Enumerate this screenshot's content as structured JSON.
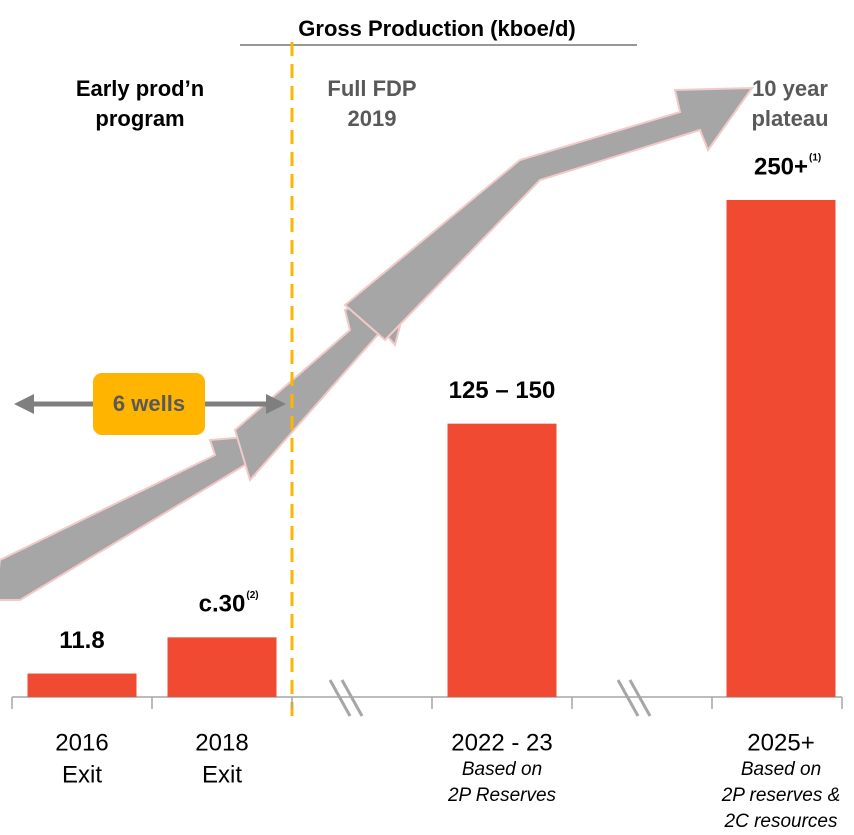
{
  "chart_data": {
    "type": "bar",
    "title": "Gross Production (kboe/d)",
    "categories": [
      "2016",
      "2018",
      "2022 - 23",
      "2025+"
    ],
    "category_notes": [
      [
        "Exit"
      ],
      [
        "Exit"
      ],
      [
        "Based on",
        "2P Reserves"
      ],
      [
        "Based on",
        "2P reserves &",
        "2C resources"
      ]
    ],
    "values": [
      11.8,
      30,
      137.5,
      250
    ],
    "value_labels": [
      "11.8",
      "c.30",
      "125 – 150",
      "250+"
    ],
    "footnotes": [
      null,
      "(2)",
      null,
      "(1)"
    ],
    "color": "#f04a32",
    "annotations": {
      "early": [
        "Early prod’n",
        "program"
      ],
      "fdp": [
        "Full FDP",
        "2019"
      ],
      "plateau": [
        "10 year",
        "plateau"
      ],
      "wells": "6 wells"
    }
  }
}
